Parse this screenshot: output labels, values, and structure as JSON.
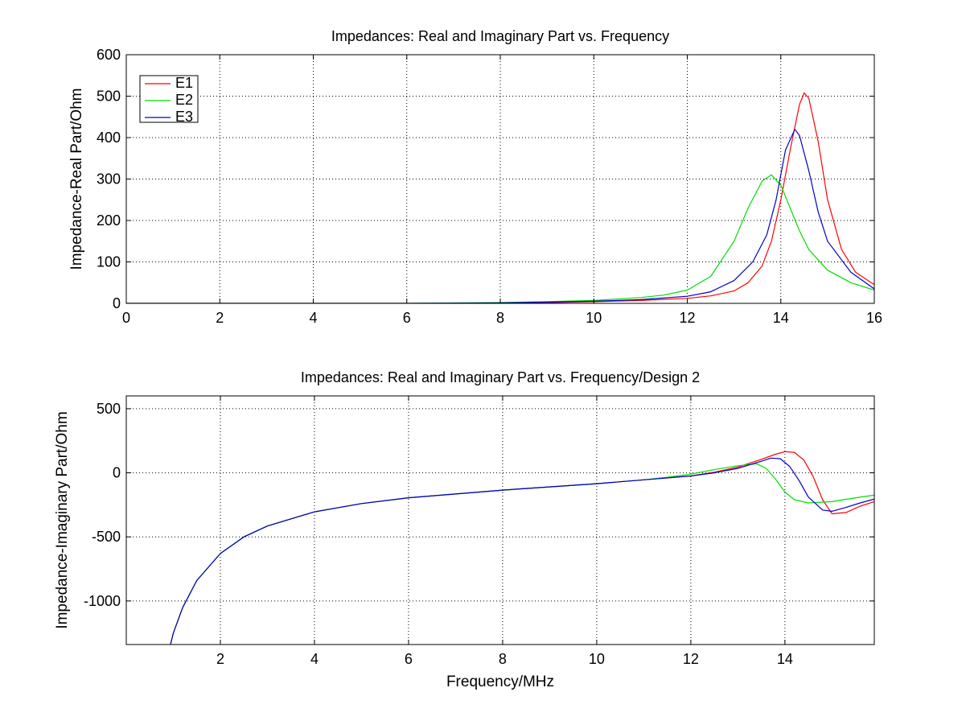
{
  "chart_data": [
    {
      "type": "line",
      "title": "Impedances: Real and Imaginary Part vs. Frequency",
      "xlabel": "",
      "ylabel": "Impedance-Real Part/Ohm",
      "xlim": [
        0,
        16
      ],
      "ylim": [
        0,
        600
      ],
      "xticks": [
        0,
        2,
        4,
        6,
        8,
        10,
        12,
        14,
        16
      ],
      "yticks": [
        0,
        100,
        200,
        300,
        400,
        500,
        600
      ],
      "xtick_labels": [
        "0",
        "2",
        "4",
        "6",
        "8",
        "10",
        "12",
        "14",
        "16"
      ],
      "ytick_labels": [
        "0",
        "100",
        "200",
        "300",
        "400",
        "500",
        "600"
      ],
      "grid": true,
      "legend": {
        "placement": "top-left",
        "entries": [
          "E1",
          "E2",
          "E3"
        ]
      },
      "series": [
        {
          "name": "E1",
          "color": "#ff0000",
          "x": [
            0,
            6,
            8,
            9,
            10,
            11,
            12,
            12.5,
            13,
            13.3,
            13.6,
            13.8,
            14.0,
            14.2,
            14.4,
            14.5,
            14.6,
            14.8,
            15.0,
            15.3,
            15.6,
            16.0
          ],
          "y": [
            0,
            0,
            1,
            2,
            4,
            7,
            12,
            18,
            30,
            50,
            90,
            150,
            250,
            370,
            480,
            508,
            495,
            390,
            250,
            130,
            75,
            45
          ]
        },
        {
          "name": "E2",
          "color": "#00dd00",
          "x": [
            0,
            6,
            8,
            9,
            10,
            11,
            11.5,
            12,
            12.5,
            13,
            13.3,
            13.6,
            13.8,
            14.0,
            14.2,
            14.4,
            14.6,
            15.0,
            15.5,
            16.0
          ],
          "y": [
            0,
            0,
            2,
            4,
            7,
            14,
            20,
            32,
            65,
            150,
            230,
            295,
            310,
            285,
            230,
            175,
            130,
            80,
            50,
            32
          ]
        },
        {
          "name": "E3",
          "color": "#0000cc",
          "x": [
            0,
            6,
            8,
            9,
            10,
            11,
            12,
            12.5,
            13,
            13.4,
            13.7,
            13.9,
            14.1,
            14.3,
            14.4,
            14.6,
            14.8,
            15.0,
            15.5,
            16.0
          ],
          "y": [
            0,
            0,
            1,
            3,
            5,
            9,
            17,
            28,
            55,
            100,
            165,
            250,
            370,
            420,
            405,
            320,
            220,
            150,
            75,
            35
          ]
        }
      ]
    },
    {
      "type": "line",
      "title": "Impedances: Real and Imaginary Part vs. Frequency/Design 2",
      "xlabel": "Frequency/MHz",
      "ylabel": "Impedance-Imaginary Part/Ohm",
      "xlim": [
        0,
        15.9
      ],
      "ylim": [
        -1340,
        600
      ],
      "xticks": [
        2,
        4,
        6,
        8,
        10,
        12,
        14
      ],
      "yticks": [
        500,
        0,
        -500,
        -1000
      ],
      "xtick_labels": [
        "2",
        "4",
        "6",
        "8",
        "10",
        "12",
        "14"
      ],
      "ytick_labels": [
        "500",
        "0",
        "-500",
        "-1000"
      ],
      "grid": true,
      "series": [
        {
          "color": "#ff0000",
          "x": [
            0.9,
            1.0,
            1.2,
            1.5,
            2.0,
            2.5,
            3.0,
            4.0,
            5.0,
            6.0,
            8.0,
            10.0,
            11.0,
            12.0,
            12.5,
            13.0,
            13.5,
            13.8,
            14.0,
            14.2,
            14.4,
            14.6,
            14.8,
            15.0,
            15.3,
            15.6,
            15.9
          ],
          "y": [
            -1400,
            -1250,
            -1050,
            -840,
            -630,
            -500,
            -415,
            -305,
            -240,
            -195,
            -135,
            -85,
            -55,
            -25,
            5,
            45,
            105,
            145,
            165,
            160,
            100,
            -30,
            -210,
            -320,
            -310,
            -260,
            -225
          ]
        },
        {
          "color": "#00dd00",
          "x": [
            0.9,
            1.0,
            1.2,
            1.5,
            2.0,
            2.5,
            3.0,
            4.0,
            5.0,
            6.0,
            8.0,
            10.0,
            11.0,
            11.5,
            12.0,
            12.5,
            13.0,
            13.4,
            13.6,
            13.8,
            14.0,
            14.2,
            14.5,
            15.0,
            15.5,
            15.9
          ],
          "y": [
            -1400,
            -1250,
            -1050,
            -840,
            -630,
            -500,
            -415,
            -305,
            -240,
            -195,
            -135,
            -85,
            -55,
            -35,
            -10,
            25,
            55,
            70,
            35,
            -50,
            -150,
            -210,
            -235,
            -225,
            -195,
            -175
          ]
        },
        {
          "color": "#0000cc",
          "x": [
            0.9,
            1.0,
            1.2,
            1.5,
            2.0,
            2.5,
            3.0,
            4.0,
            5.0,
            6.0,
            8.0,
            10.0,
            11.0,
            12.0,
            12.5,
            13.0,
            13.5,
            13.7,
            13.9,
            14.1,
            14.3,
            14.5,
            14.8,
            15.0,
            15.3,
            15.6,
            15.9
          ],
          "y": [
            -1400,
            -1250,
            -1050,
            -840,
            -630,
            -500,
            -415,
            -305,
            -240,
            -195,
            -135,
            -85,
            -55,
            -25,
            0,
            35,
            90,
            115,
            110,
            50,
            -60,
            -190,
            -290,
            -300,
            -270,
            -235,
            -205
          ]
        }
      ]
    }
  ]
}
